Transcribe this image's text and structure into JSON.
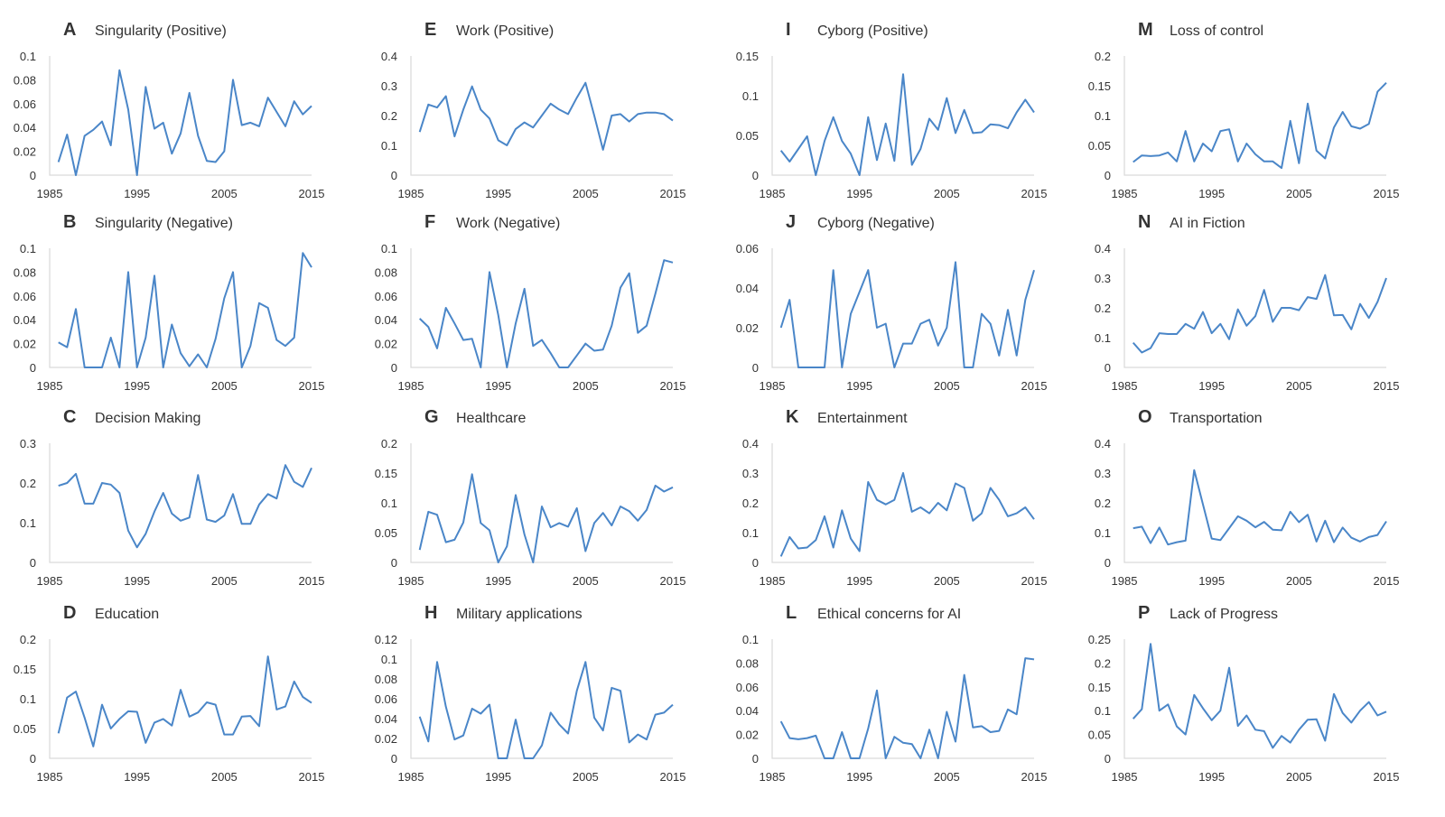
{
  "line_color": "#4a86c8",
  "chart_data": [
    {
      "type": "line",
      "letter": "A",
      "title": "Singularity (Positive)",
      "x_start": 1986,
      "x_end": 2015,
      "xticks": [
        1985,
        1995,
        2005,
        2015
      ],
      "ylim": [
        0,
        0.1
      ],
      "yticks": [
        "0",
        "0.02",
        "0.04",
        "0.06",
        "0.08",
        "0.1"
      ],
      "values": [
        0.011,
        0.034,
        0,
        0.033,
        0.038,
        0.045,
        0.025,
        0.088,
        0.055,
        0,
        0.074,
        0.039,
        0.044,
        0.018,
        0.035,
        0.069,
        0.033,
        0.012,
        0.011,
        0.02,
        0.08,
        0.042,
        0.044,
        0.041,
        0.065,
        0.053,
        0.041,
        0.062,
        0.051,
        0.058
      ]
    },
    {
      "type": "line",
      "letter": "B",
      "title": "Singularity (Negative)",
      "x_start": 1986,
      "x_end": 2015,
      "xticks": [
        1985,
        1995,
        2005,
        2015
      ],
      "ylim": [
        0,
        0.1
      ],
      "yticks": [
        "0",
        "0.02",
        "0.04",
        "0.06",
        "0.08",
        "0.1"
      ],
      "values": [
        0.021,
        0.017,
        0.049,
        0,
        0,
        0,
        0.025,
        0,
        0.08,
        0,
        0.025,
        0.077,
        0,
        0.036,
        0.012,
        0.001,
        0.011,
        0,
        0.024,
        0.058,
        0.08,
        0,
        0.018,
        0.054,
        0.05,
        0.023,
        0.018,
        0.025,
        0.096,
        0.084
      ]
    },
    {
      "type": "line",
      "letter": "C",
      "title": "Decision Making",
      "x_start": 1986,
      "x_end": 2015,
      "xticks": [
        1985,
        1995,
        2005,
        2015
      ],
      "ylim": [
        0,
        0.3
      ],
      "yticks": [
        "0",
        "0.1",
        "0.2",
        "0.3"
      ],
      "values": [
        0.193,
        0.2,
        0.223,
        0.148,
        0.148,
        0.2,
        0.196,
        0.175,
        0.08,
        0.038,
        0.072,
        0.128,
        0.175,
        0.123,
        0.105,
        0.113,
        0.22,
        0.108,
        0.102,
        0.118,
        0.172,
        0.097,
        0.097,
        0.146,
        0.172,
        0.161,
        0.245,
        0.203,
        0.19,
        0.238
      ]
    },
    {
      "type": "line",
      "letter": "D",
      "title": "Education",
      "x_start": 1986,
      "x_end": 2015,
      "xticks": [
        1985,
        1995,
        2005,
        2015
      ],
      "ylim": [
        0,
        0.2
      ],
      "yticks": [
        "0",
        "0.05",
        "0.1",
        "0.15",
        "0.2"
      ],
      "values": [
        0.042,
        0.102,
        0.112,
        0.068,
        0.02,
        0.09,
        0.05,
        0.066,
        0.079,
        0.078,
        0.026,
        0.06,
        0.066,
        0.055,
        0.115,
        0.07,
        0.077,
        0.094,
        0.09,
        0.04,
        0.04,
        0.07,
        0.071,
        0.054,
        0.171,
        0.082,
        0.087,
        0.129,
        0.103,
        0.093
      ]
    },
    {
      "type": "line",
      "letter": "E",
      "title": "Work (Positive)",
      "x_start": 1986,
      "x_end": 2015,
      "xticks": [
        1985,
        1995,
        2005,
        2015
      ],
      "ylim": [
        0,
        0.4
      ],
      "yticks": [
        "0",
        "0.1",
        "0.2",
        "0.3",
        "0.4"
      ],
      "values": [
        0.145,
        0.237,
        0.227,
        0.265,
        0.13,
        0.22,
        0.298,
        0.22,
        0.19,
        0.117,
        0.1,
        0.155,
        0.177,
        0.16,
        0.2,
        0.24,
        0.22,
        0.205,
        0.26,
        0.31,
        0.2,
        0.085,
        0.2,
        0.205,
        0.18,
        0.205,
        0.21,
        0.21,
        0.205,
        0.183
      ]
    },
    {
      "type": "line",
      "letter": "F",
      "title": "Work (Negative)",
      "x_start": 1986,
      "x_end": 2015,
      "xticks": [
        1985,
        1995,
        2005,
        2015
      ],
      "ylim": [
        0,
        0.1
      ],
      "yticks": [
        "0",
        "0.02",
        "0.04",
        "0.06",
        "0.08",
        "0.1"
      ],
      "values": [
        0.041,
        0.034,
        0.016,
        0.05,
        0.037,
        0.023,
        0.024,
        0,
        0.08,
        0.044,
        0,
        0.037,
        0.066,
        0.018,
        0.023,
        0.012,
        0,
        0,
        0.01,
        0.02,
        0.014,
        0.015,
        0.035,
        0.067,
        0.079,
        0.029,
        0.035,
        0.062,
        0.09,
        0.088
      ]
    },
    {
      "type": "line",
      "letter": "G",
      "title": "Healthcare",
      "x_start": 1986,
      "x_end": 2015,
      "xticks": [
        1985,
        1995,
        2005,
        2015
      ],
      "ylim": [
        0,
        0.2
      ],
      "yticks": [
        "0",
        "0.05",
        "0.1",
        "0.15",
        "0.2"
      ],
      "values": [
        0.021,
        0.085,
        0.08,
        0.034,
        0.038,
        0.067,
        0.148,
        0.066,
        0.054,
        0,
        0.027,
        0.113,
        0.047,
        0,
        0.094,
        0.059,
        0.066,
        0.06,
        0.091,
        0.019,
        0.066,
        0.083,
        0.062,
        0.094,
        0.086,
        0.07,
        0.088,
        0.129,
        0.119,
        0.126
      ]
    },
    {
      "type": "line",
      "letter": "H",
      "title": "Military applications",
      "x_start": 1986,
      "x_end": 2015,
      "xticks": [
        1985,
        1995,
        2005,
        2015
      ],
      "ylim": [
        0,
        0.12
      ],
      "yticks": [
        "0",
        "0.02",
        "0.04",
        "0.06",
        "0.08",
        "0.1",
        "0.12"
      ],
      "values": [
        0.042,
        0.017,
        0.097,
        0.052,
        0.019,
        0.023,
        0.05,
        0.045,
        0.054,
        0,
        0,
        0.039,
        0,
        0,
        0.013,
        0.046,
        0.034,
        0.025,
        0.068,
        0.097,
        0.041,
        0.028,
        0.071,
        0.068,
        0.016,
        0.024,
        0.019,
        0.044,
        0.046,
        0.054
      ]
    },
    {
      "type": "line",
      "letter": "I",
      "title": "Cyborg (Positive)",
      "x_start": 1986,
      "x_end": 2015,
      "xticks": [
        1985,
        1995,
        2005,
        2015
      ],
      "ylim": [
        0,
        0.15
      ],
      "yticks": [
        "0",
        "0.05",
        "0.1",
        "0.15"
      ],
      "values": [
        0.031,
        0.017,
        0.033,
        0.049,
        0,
        0.043,
        0.073,
        0.043,
        0.027,
        0,
        0.073,
        0.019,
        0.065,
        0.018,
        0.127,
        0.013,
        0.033,
        0.071,
        0.057,
        0.097,
        0.053,
        0.082,
        0.053,
        0.054,
        0.064,
        0.063,
        0.059,
        0.079,
        0.095,
        0.079
      ]
    },
    {
      "type": "line",
      "letter": "J",
      "title": "Cyborg (Negative)",
      "x_start": 1986,
      "x_end": 2015,
      "xticks": [
        1985,
        1995,
        2005,
        2015
      ],
      "ylim": [
        0,
        0.06
      ],
      "yticks": [
        "0",
        "0.02",
        "0.04",
        "0.06"
      ],
      "values": [
        0.02,
        0.034,
        0,
        0,
        0,
        0,
        0.049,
        0,
        0.027,
        0.038,
        0.049,
        0.02,
        0.022,
        0,
        0.012,
        0.012,
        0.022,
        0.024,
        0.011,
        0.02,
        0.053,
        0,
        0,
        0.027,
        0.022,
        0.006,
        0.029,
        0.006,
        0.034,
        0.049
      ]
    },
    {
      "type": "line",
      "letter": "K",
      "title": "Entertainment",
      "x_start": 1986,
      "x_end": 2015,
      "xticks": [
        1985,
        1995,
        2005,
        2015
      ],
      "ylim": [
        0,
        0.4
      ],
      "yticks": [
        "0",
        "0.1",
        "0.2",
        "0.3",
        "0.4"
      ],
      "values": [
        0.02,
        0.085,
        0.047,
        0.05,
        0.075,
        0.155,
        0.05,
        0.175,
        0.08,
        0.038,
        0.27,
        0.21,
        0.195,
        0.21,
        0.3,
        0.17,
        0.185,
        0.165,
        0.2,
        0.175,
        0.265,
        0.25,
        0.14,
        0.165,
        0.25,
        0.21,
        0.155,
        0.165,
        0.185,
        0.145
      ]
    },
    {
      "type": "line",
      "letter": "L",
      "title": "Ethical concerns for AI",
      "x_start": 1986,
      "x_end": 2015,
      "xticks": [
        1985,
        1995,
        2005,
        2015
      ],
      "ylim": [
        0,
        0.1
      ],
      "yticks": [
        "0",
        "0.02",
        "0.04",
        "0.06",
        "0.08",
        "0.1"
      ],
      "values": [
        0.031,
        0.017,
        0.016,
        0.017,
        0.019,
        0,
        0,
        0.022,
        0,
        0,
        0.025,
        0.057,
        0,
        0.018,
        0.013,
        0.012,
        0,
        0.024,
        0,
        0.039,
        0.014,
        0.07,
        0.026,
        0.027,
        0.022,
        0.023,
        0.041,
        0.037,
        0.084,
        0.083
      ]
    },
    {
      "type": "line",
      "letter": "M",
      "title": "Loss of control",
      "x_start": 1986,
      "x_end": 2015,
      "xticks": [
        1985,
        1995,
        2005,
        2015
      ],
      "ylim": [
        0,
        0.2
      ],
      "yticks": [
        "0",
        "0.05",
        "0.1",
        "0.15",
        "0.2"
      ],
      "values": [
        0.022,
        0.033,
        0.032,
        0.033,
        0.038,
        0.023,
        0.074,
        0.023,
        0.053,
        0.04,
        0.074,
        0.077,
        0.023,
        0.053,
        0.035,
        0.023,
        0.023,
        0.012,
        0.091,
        0.02,
        0.12,
        0.041,
        0.028,
        0.08,
        0.106,
        0.082,
        0.078,
        0.086,
        0.14,
        0.155
      ]
    },
    {
      "type": "line",
      "letter": "N",
      "title": "AI in Fiction",
      "x_start": 1986,
      "x_end": 2015,
      "xticks": [
        1985,
        1995,
        2005,
        2015
      ],
      "ylim": [
        0,
        0.4
      ],
      "yticks": [
        "0",
        "0.1",
        "0.2",
        "0.3",
        "0.4"
      ],
      "values": [
        0.083,
        0.05,
        0.065,
        0.115,
        0.112,
        0.112,
        0.146,
        0.13,
        0.186,
        0.115,
        0.146,
        0.095,
        0.195,
        0.14,
        0.172,
        0.26,
        0.153,
        0.2,
        0.2,
        0.192,
        0.236,
        0.23,
        0.31,
        0.175,
        0.176,
        0.128,
        0.213,
        0.166,
        0.22,
        0.3
      ]
    },
    {
      "type": "line",
      "letter": "O",
      "title": "Transportation",
      "x_start": 1986,
      "x_end": 2015,
      "xticks": [
        1985,
        1995,
        2005,
        2015
      ],
      "ylim": [
        0,
        0.4
      ],
      "yticks": [
        "0",
        "0.1",
        "0.2",
        "0.3",
        "0.4"
      ],
      "values": [
        0.115,
        0.12,
        0.065,
        0.117,
        0.06,
        0.068,
        0.073,
        0.31,
        0.195,
        0.08,
        0.075,
        0.115,
        0.155,
        0.14,
        0.118,
        0.136,
        0.11,
        0.108,
        0.17,
        0.135,
        0.16,
        0.07,
        0.14,
        0.068,
        0.117,
        0.083,
        0.07,
        0.085,
        0.092,
        0.138
      ]
    },
    {
      "type": "line",
      "letter": "P",
      "title": "Lack of Progress",
      "x_start": 1986,
      "x_end": 2015,
      "xticks": [
        1985,
        1995,
        2005,
        2015
      ],
      "ylim": [
        0,
        0.25
      ],
      "yticks": [
        "0",
        "0.05",
        "0.1",
        "0.15",
        "0.2",
        "0.25"
      ],
      "values": [
        0.083,
        0.103,
        0.24,
        0.1,
        0.113,
        0.067,
        0.05,
        0.133,
        0.105,
        0.08,
        0.1,
        0.19,
        0.068,
        0.09,
        0.06,
        0.057,
        0.022,
        0.047,
        0.033,
        0.06,
        0.081,
        0.082,
        0.037,
        0.135,
        0.095,
        0.075,
        0.1,
        0.118,
        0.09,
        0.098
      ]
    }
  ]
}
